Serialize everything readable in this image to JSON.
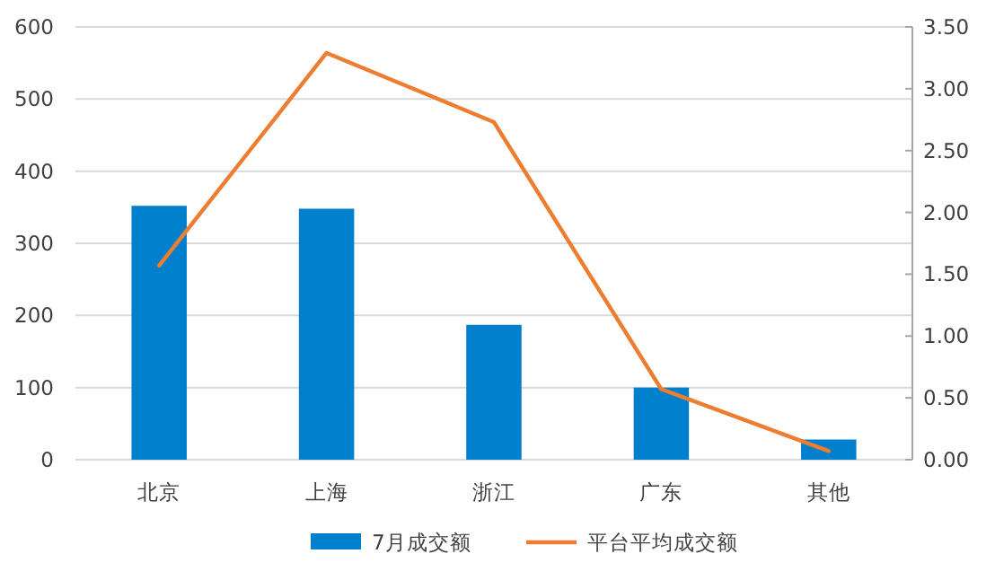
{
  "chart_data": {
    "type": "bar",
    "categories": [
      "北京",
      "上海",
      "浙江",
      "广东",
      "其他"
    ],
    "series": [
      {
        "name": "7月成交额",
        "color": "#0080cc",
        "values": [
          352,
          348,
          187,
          100,
          28
        ]
      },
      {
        "name": "平台平均成交额",
        "type": "line",
        "axis": "y2",
        "color": "#ed7d31",
        "values": [
          1.57,
          3.29,
          2.73,
          0.57,
          0.07
        ]
      }
    ],
    "ylim": [
      0,
      600
    ],
    "yticks": [
      0,
      100,
      200,
      300,
      400,
      500,
      600
    ],
    "y2lim": [
      0,
      3.5
    ],
    "y2ticks": [
      {
        "value": 0,
        "label": "0.00"
      },
      {
        "value": 0.5,
        "label": "0.50"
      },
      {
        "value": 1,
        "label": "1.00"
      },
      {
        "value": 1.5,
        "label": "1.50"
      },
      {
        "value": 2,
        "label": "2.00"
      },
      {
        "value": 2.5,
        "label": "2.50"
      },
      {
        "value": 3,
        "label": "3.00"
      },
      {
        "value": 3.5,
        "label": "3.50"
      }
    ],
    "grid": "y",
    "legend": "bottom"
  }
}
